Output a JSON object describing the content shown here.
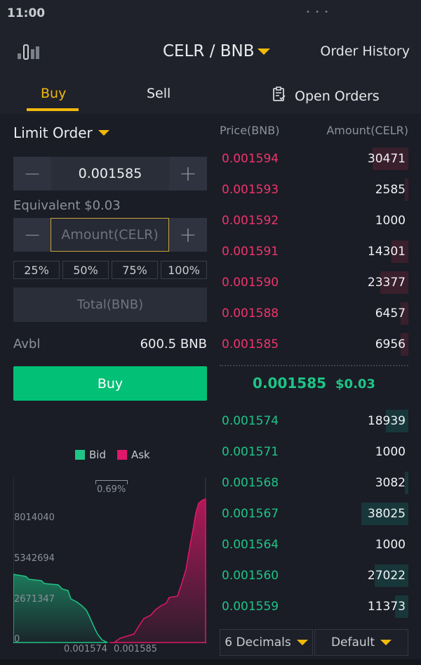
{
  "status_bar": {
    "time": "11:00"
  },
  "header": {
    "pair": "CELR / BNB",
    "order_history": "Order History",
    "tabs": {
      "buy": "Buy",
      "sell": "Sell",
      "open_orders": "Open Orders"
    }
  },
  "form": {
    "order_type": "Limit Order",
    "price_value": "0.001585",
    "equivalent": "Equivalent $0.03",
    "amount_placeholder": "Amount(CELR)",
    "percents": [
      "25%",
      "50%",
      "75%",
      "100%"
    ],
    "total_placeholder": "Total(BNB)",
    "avbl_label": "Avbl",
    "avbl_value": "600.5 BNB",
    "buy_button": "Buy"
  },
  "depth_chart": {
    "legend": {
      "bid": "Bid",
      "ask": "Ask"
    },
    "spread": "0.69%",
    "y_labels": [
      "8014040",
      "5342694",
      "2671347",
      "0"
    ],
    "x_labels": [
      "0.001574",
      "0.001585"
    ]
  },
  "order_book": {
    "headers": {
      "price": "Price(BNB)",
      "amount": "Amount(CELR)"
    },
    "asks": [
      {
        "price": "0.001594",
        "amount": "30471",
        "depth": 0.19
      },
      {
        "price": "0.001593",
        "amount": "2585",
        "depth": 0.02
      },
      {
        "price": "0.001592",
        "amount": "1000",
        "depth": 0.0
      },
      {
        "price": "0.001591",
        "amount": "14301",
        "depth": 0.09
      },
      {
        "price": "0.001590",
        "amount": "23377",
        "depth": 0.15
      },
      {
        "price": "0.001588",
        "amount": "6457",
        "depth": 0.04
      },
      {
        "price": "0.001585",
        "amount": "6956",
        "depth": 0.04
      }
    ],
    "last_price": "0.001585",
    "last_price_usd": "$0.03",
    "bids": [
      {
        "price": "0.001574",
        "amount": "18939",
        "depth": 0.12
      },
      {
        "price": "0.001571",
        "amount": "1000",
        "depth": 0.0
      },
      {
        "price": "0.001568",
        "amount": "3082",
        "depth": 0.02
      },
      {
        "price": "0.001567",
        "amount": "38025",
        "depth": 0.25
      },
      {
        "price": "0.001564",
        "amount": "1000",
        "depth": 0.0
      },
      {
        "price": "0.001560",
        "amount": "27022",
        "depth": 0.18
      },
      {
        "price": "0.001559",
        "amount": "11373",
        "depth": 0.07
      }
    ],
    "decimals": "6 Decimals",
    "view_mode": "Default"
  },
  "colors": {
    "accent": "#f0b90b",
    "buy": "#02c076",
    "bid": "#1fc486",
    "ask": "#f0346b",
    "background": "#1a1d26"
  }
}
